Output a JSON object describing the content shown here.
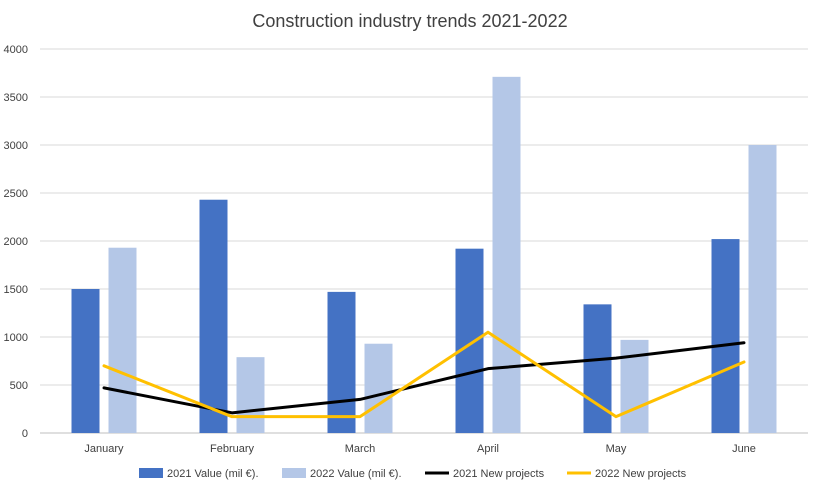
{
  "chart_data": {
    "type": "bar",
    "title": "Construction industry trends 2021-2022",
    "categories": [
      "January",
      "February",
      "March",
      "April",
      "May",
      "June"
    ],
    "ylim": [
      0,
      4000
    ],
    "yticks": [
      0,
      500,
      1000,
      1500,
      2000,
      2500,
      3000,
      3500,
      4000
    ],
    "grid": true,
    "legend_position": "bottom",
    "series": [
      {
        "name": "2021 Value (mil €).",
        "kind": "bar",
        "color": "#4472C4",
        "values": [
          1500,
          2430,
          1470,
          1920,
          1340,
          2020
        ]
      },
      {
        "name": "2022 Value (mil €).",
        "kind": "bar",
        "color": "#B4C7E7",
        "values": [
          1930,
          790,
          930,
          3710,
          970,
          3000
        ]
      },
      {
        "name": "2021 New projects",
        "kind": "line",
        "color": "#000000",
        "values": [
          470,
          210,
          350,
          670,
          780,
          940
        ]
      },
      {
        "name": "2022 New projects",
        "kind": "line",
        "color": "#FFC000",
        "values": [
          700,
          170,
          170,
          1050,
          170,
          740
        ]
      }
    ]
  }
}
